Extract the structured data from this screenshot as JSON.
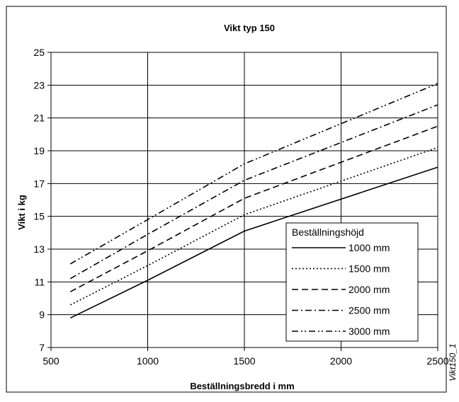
{
  "chart_data": {
    "type": "line",
    "title": "Vikt typ 150",
    "xlabel": "Beställningsbredd i mm",
    "ylabel": "Vikt i kg",
    "xlim": [
      500,
      2500
    ],
    "ylim": [
      7,
      25
    ],
    "xticks": [
      "500",
      "1000",
      "1500",
      "2000",
      "2500"
    ],
    "yticks": [
      "7",
      "9",
      "11",
      "13",
      "15",
      "17",
      "19",
      "21",
      "23",
      "25"
    ],
    "grid": true,
    "legend_title": "Beställningshöjd",
    "legend_position": "bottom-right",
    "series": [
      {
        "name": "1000 mm",
        "style": "solid",
        "x": [
          600,
          1000,
          1500,
          2500
        ],
        "y": [
          8.8,
          11.1,
          14.1,
          18.0
        ]
      },
      {
        "name": "1500 mm",
        "style": "dotted",
        "x": [
          600,
          1000,
          1500,
          2500
        ],
        "y": [
          9.6,
          12.0,
          15.1,
          19.2
        ]
      },
      {
        "name": "2000 mm",
        "style": "dashed",
        "x": [
          600,
          1000,
          1500,
          2500
        ],
        "y": [
          10.4,
          12.9,
          16.1,
          20.5
        ]
      },
      {
        "name": "2500 mm",
        "style": "dash-dot",
        "x": [
          600,
          1000,
          1500,
          2500
        ],
        "y": [
          11.2,
          13.9,
          17.2,
          21.8
        ]
      },
      {
        "name": "3000 mm",
        "style": "dash-dot-dot",
        "x": [
          600,
          1000,
          1500,
          2500
        ],
        "y": [
          12.1,
          14.8,
          18.2,
          23.1
        ]
      }
    ]
  },
  "side_label": "Vikt150_1"
}
